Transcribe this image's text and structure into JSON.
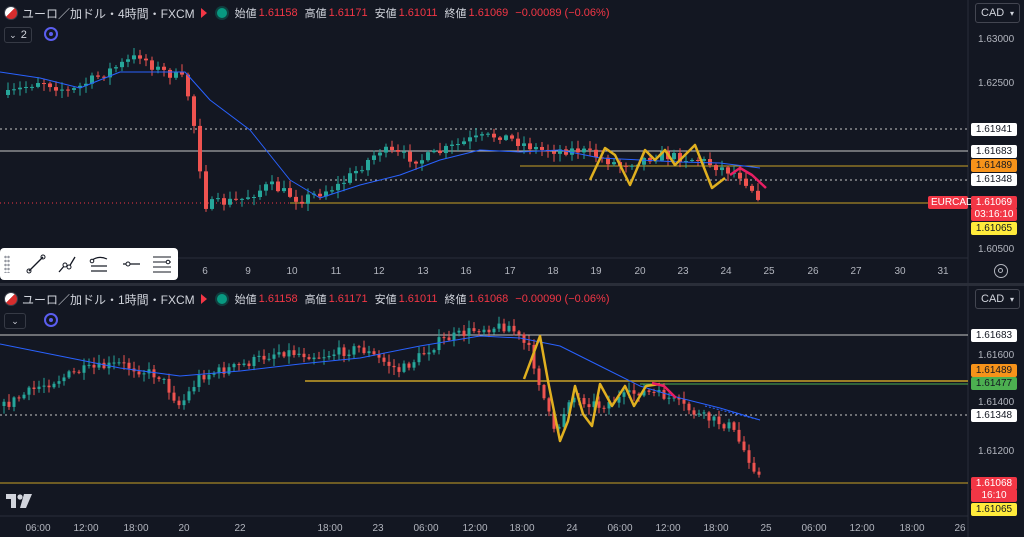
{
  "pane1": {
    "symbol": "ユーロ／加ドル・4時間・FXCM",
    "ohlc": [
      {
        "label": "始値",
        "value": "1.61158"
      },
      {
        "label": "高値",
        "value": "1.61171"
      },
      {
        "label": "安値",
        "value": "1.61011"
      },
      {
        "label": "終値",
        "value": "1.61069"
      }
    ],
    "change": "−0.00089 (−0.06%)",
    "collapse_label": "2",
    "currency": "CAD",
    "price_ticks": [
      "1.63000",
      "1.62500",
      "1.60500"
    ],
    "price_tags": [
      {
        "text": "1.61941",
        "style": "white"
      },
      {
        "text": "1.61683",
        "style": "white"
      },
      {
        "text": "1.61489",
        "style": "orange"
      },
      {
        "text": "1.61348",
        "style": "white"
      },
      {
        "text": "1.61069",
        "style": "red"
      },
      {
        "text": "03:16:10",
        "style": "red"
      },
      {
        "text": "1.61065",
        "style": "yellow"
      }
    ],
    "symbol_tag": "EURCAD",
    "time_labels": [
      "6",
      "9",
      "10",
      "11",
      "12",
      "13",
      "16",
      "17",
      "18",
      "19",
      "20",
      "23",
      "24",
      "25",
      "26",
      "27",
      "30",
      "31"
    ],
    "toolbar_tools": [
      "trend-line-icon",
      "ray-icon",
      "parallel-channel-icon",
      "horizontal-ray-icon",
      "fib-retracement-icon"
    ]
  },
  "pane2": {
    "symbol": "ユーロ／加ドル・1時間・FXCM",
    "ohlc": [
      {
        "label": "始値",
        "value": "1.61158"
      },
      {
        "label": "高値",
        "value": "1.61171"
      },
      {
        "label": "安値",
        "value": "1.61011"
      },
      {
        "label": "終値",
        "value": "1.61068"
      }
    ],
    "change": "−0.00090 (−0.06%)",
    "currency": "CAD",
    "price_ticks": [
      "1.61600",
      "1.61400",
      "1.61200"
    ],
    "price_tags": [
      {
        "text": "1.61683",
        "style": "white"
      },
      {
        "text": "1.61489",
        "style": "orange"
      },
      {
        "text": "1.61477",
        "style": "green"
      },
      {
        "text": "1.61348",
        "style": "white"
      },
      {
        "text": "1.61068",
        "style": "red"
      },
      {
        "text": "16:10",
        "style": "red"
      },
      {
        "text": "1.61065",
        "style": "yellow"
      }
    ],
    "time_labels": [
      "06:00",
      "12:00",
      "18:00",
      "20",
      "22",
      "18:00",
      "23",
      "06:00",
      "12:00",
      "18:00",
      "24",
      "06:00",
      "12:00",
      "18:00",
      "25",
      "06:00",
      "12:00",
      "18:00",
      "26"
    ]
  },
  "colors": {
    "background": "#131722",
    "up": "#26a69a",
    "down": "#ef5350",
    "ma": "#2962ff",
    "support": "#c9a227",
    "zigzag": "#e0b020",
    "projection": "#e91e63"
  }
}
